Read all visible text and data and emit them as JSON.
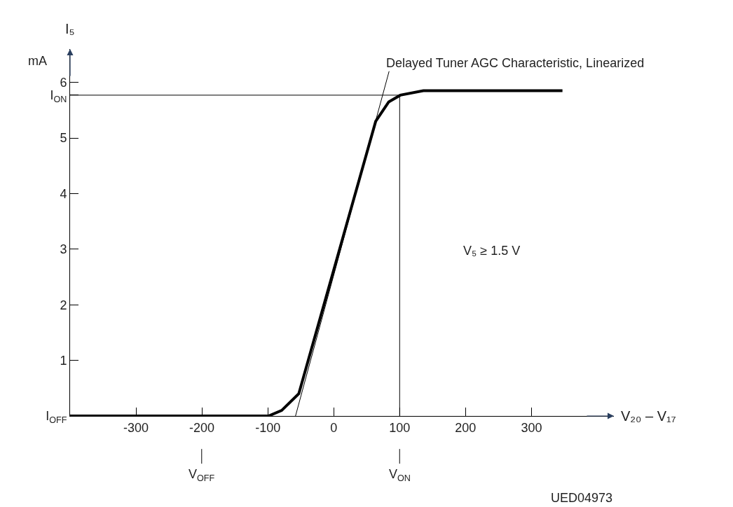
{
  "chart_data": {
    "type": "line",
    "ylabel": "I₅",
    "xlabel": "V₂₀ – V₁₇",
    "xlim": [
      -400,
      425
    ],
    "ylim": [
      0,
      6.6
    ],
    "xticks": [
      -300,
      -200,
      -100,
      0,
      100,
      200,
      300
    ],
    "yticks": [
      {
        "value": 0,
        "label": "I$_{OFF}$"
      },
      1,
      2,
      3,
      4,
      5,
      {
        "value": 5.77,
        "label": "I$_{ON}$"
      },
      6
    ],
    "series": [
      {
        "color": "#000000",
        "x": [
          -400,
          -99,
          -79,
          -53,
          63.7,
          83.5,
          101,
          136,
          347
        ],
        "values": [
          0,
          0,
          0.1,
          0.4,
          5.3,
          5.65,
          5.77,
          5.85,
          5.85
        ]
      },
      {
        "color": "#000000",
        "x": [
          -58,
          84
        ],
        "values": [
          0,
          6.2
        ]
      }
    ],
    "ref_lines": [
      {
        "axis": "y",
        "value": 5.77
      },
      {
        "axis": "x",
        "value": 100
      }
    ],
    "annotations": [
      "mA",
      "V₅ ≥ 1.5 V",
      "UED04973",
      "V$_{OFF}$",
      "V$_{ON}$",
      {
        "text": "Delayed Tuner AGC Characteristic, Linearized",
        "x": 84,
        "y": 6.2
      }
    ],
    "marker": "none",
    "line_style": "solid"
  }
}
